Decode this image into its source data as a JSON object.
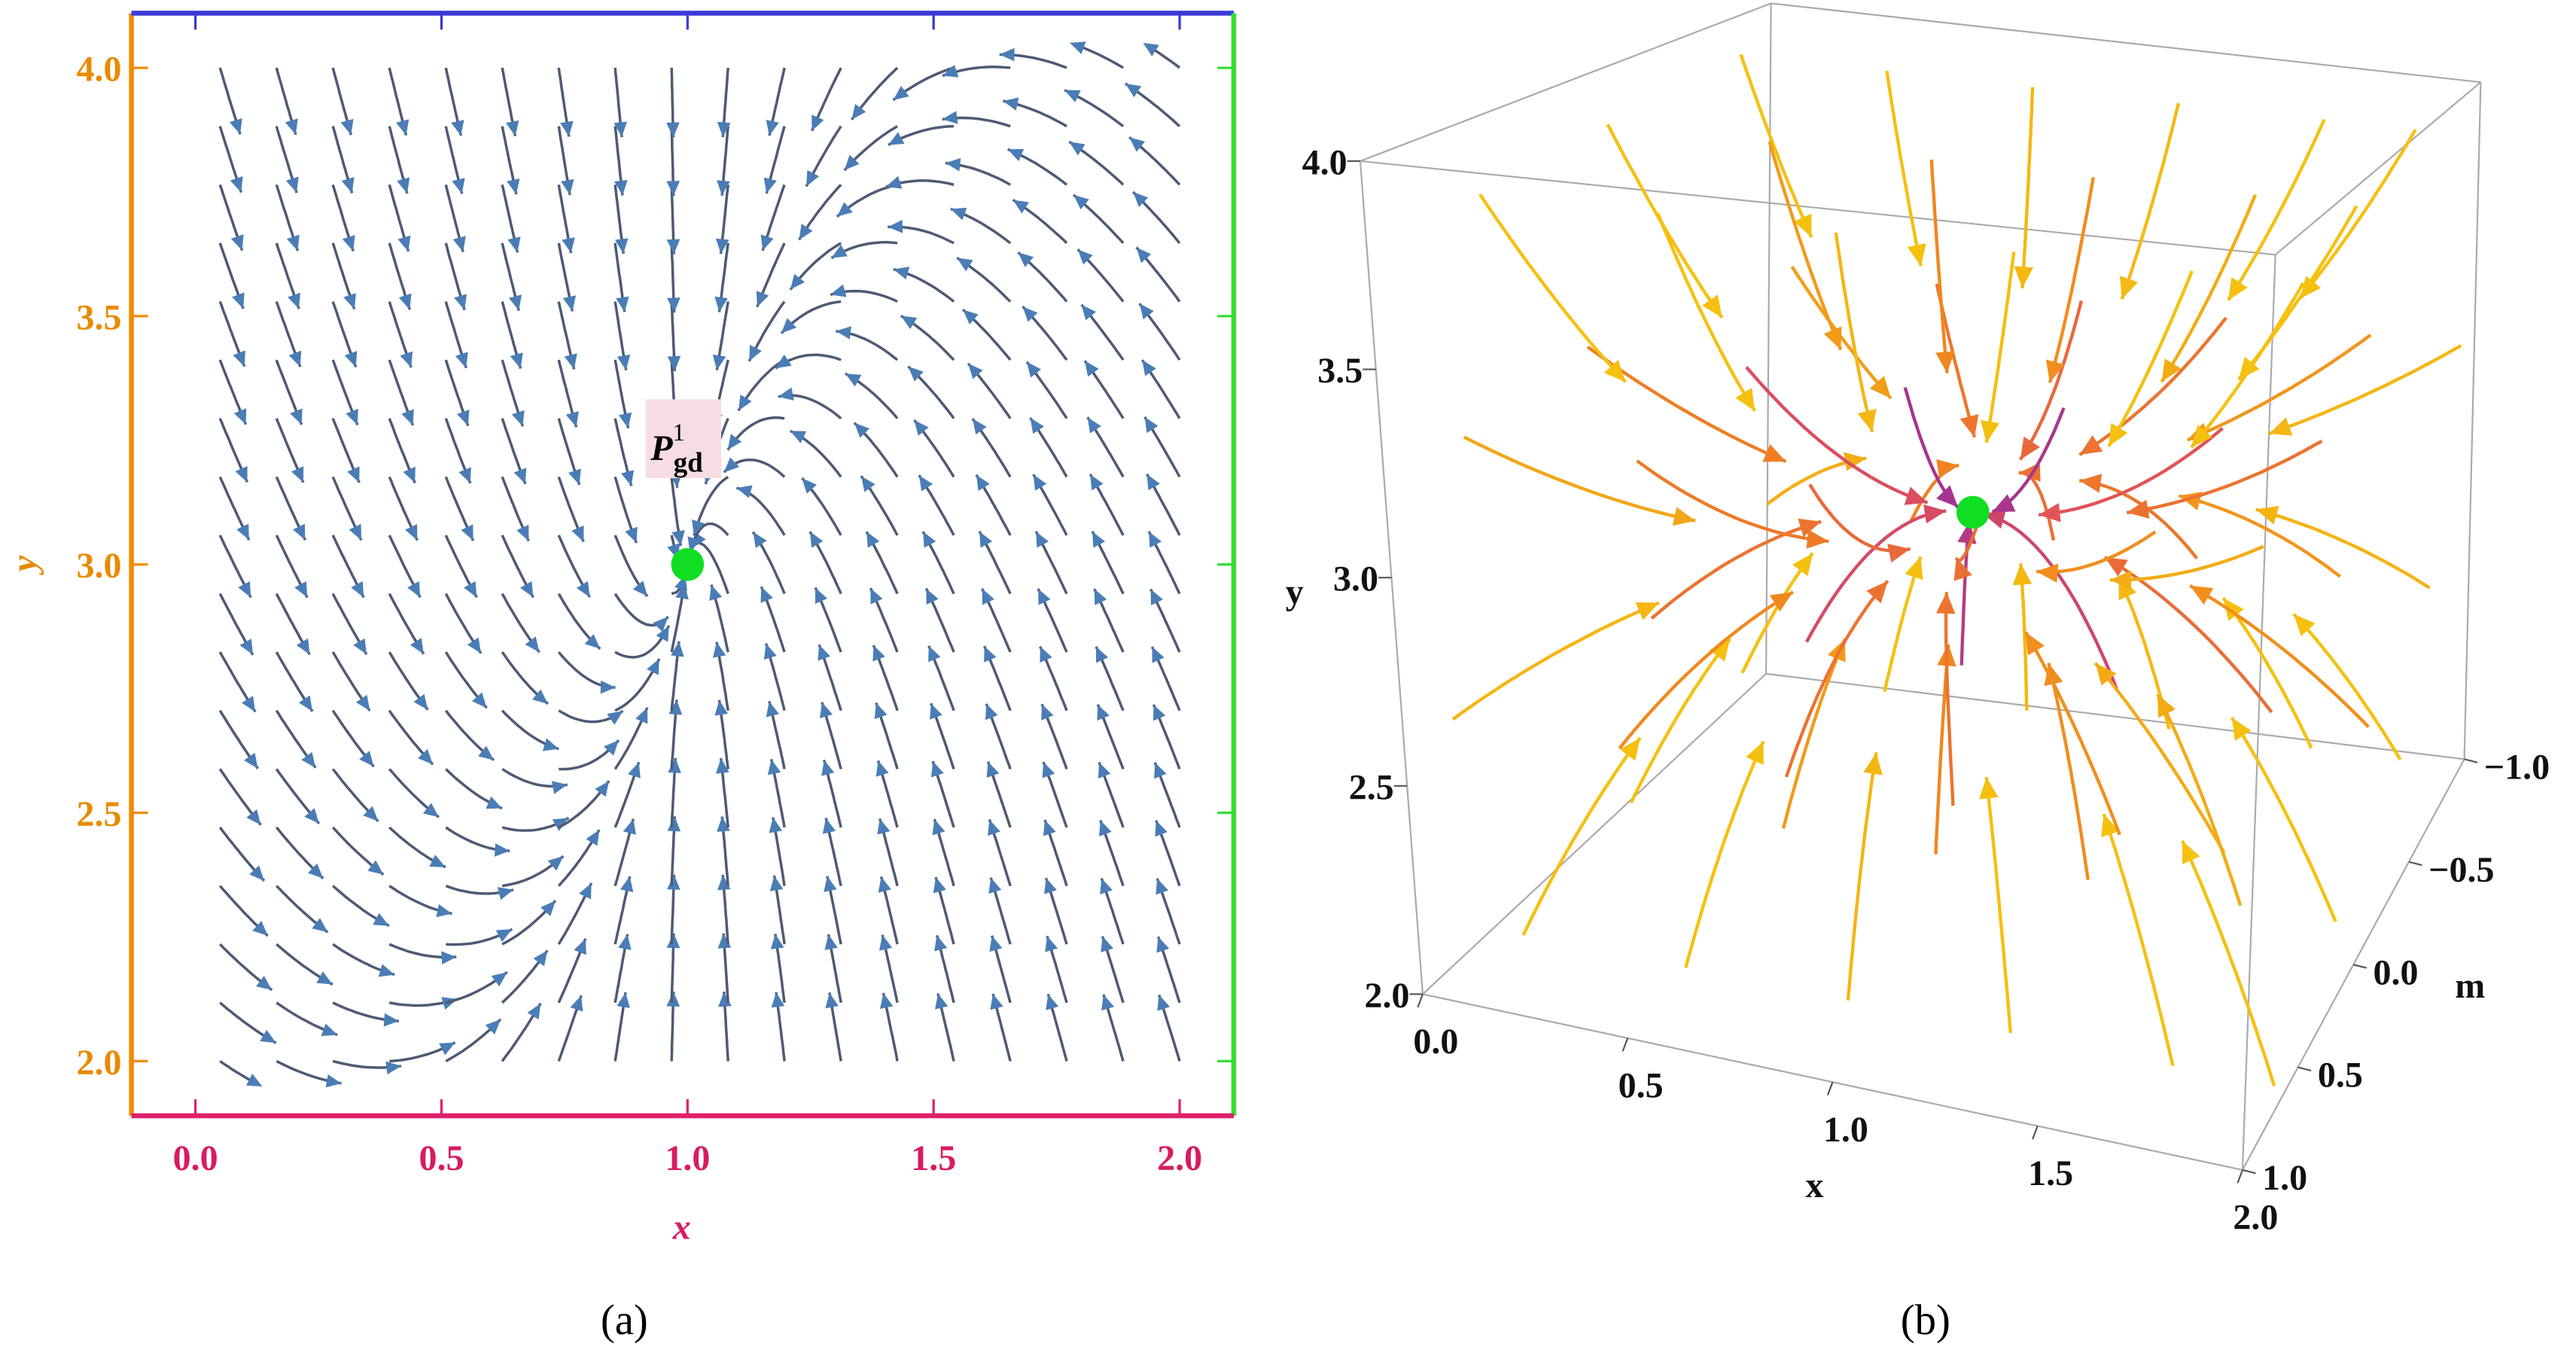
{
  "chart_data": [
    {
      "type": "stream",
      "xlabel": "x",
      "ylabel": "y",
      "xlim": [
        -0.13,
        2.11
      ],
      "ylim": [
        1.89,
        4.11
      ],
      "xticks": [
        {
          "value": 0,
          "label": "0.0"
        },
        {
          "value": 0.5,
          "label": "0.5"
        },
        {
          "value": 1,
          "label": "1.0"
        },
        {
          "value": 1.5,
          "label": "1.5"
        },
        {
          "value": 2,
          "label": "2.0"
        }
      ],
      "yticks": [
        {
          "value": 2,
          "label": "2.0"
        },
        {
          "value": 2.5,
          "label": "2.5"
        },
        {
          "value": 3,
          "label": "3.0"
        },
        {
          "value": 3.5,
          "label": "3.5"
        },
        {
          "value": 4,
          "label": "4.0"
        }
      ],
      "frame_colors": {
        "left": "#f08c00",
        "top": "#3a3ad8",
        "right": "#33dd33",
        "bottom": "#e0206a"
      },
      "xtick_color": "#d81b60",
      "ytick_color": "#e88a00",
      "stream_color": "#4e5a74",
      "arrow_color": "#4a7db5",
      "points": [
        {
          "x": 1.0,
          "y": 3.0,
          "color": "#11dd22",
          "label": "P",
          "label_sup": "1",
          "label_sub": "gd"
        }
      ],
      "caption": "(a)"
    },
    {
      "type": "stream3d",
      "xlabel": "x",
      "ylabel": "y",
      "zlabel": "m",
      "xlim": [
        0,
        2
      ],
      "ylim": [
        2,
        4
      ],
      "zlim": [
        -1,
        1
      ],
      "xticks": [
        {
          "value": 0,
          "label": "0.0"
        },
        {
          "value": 0.5,
          "label": "0.5"
        },
        {
          "value": 1,
          "label": "1.0"
        },
        {
          "value": 1.5,
          "label": "1.5"
        },
        {
          "value": 2,
          "label": "2.0"
        }
      ],
      "yticks": [
        {
          "value": 2,
          "label": "2.0"
        },
        {
          "value": 2.5,
          "label": "2.5"
        },
        {
          "value": 3,
          "label": "3.0"
        },
        {
          "value": 3.5,
          "label": "3.5"
        },
        {
          "value": 4,
          "label": "4.0"
        }
      ],
      "zticks": [
        {
          "value": -1,
          "label": "−1.0"
        },
        {
          "value": -0.5,
          "label": "−0.5"
        },
        {
          "value": 0,
          "label": "0.0"
        },
        {
          "value": 0.5,
          "label": "0.5"
        },
        {
          "value": 1,
          "label": "1.0"
        }
      ],
      "colormap": [
        "#4a1ed8",
        "#9a2f9a",
        "#e0505a",
        "#f08020",
        "#f5c010"
      ],
      "points": [
        {
          "x": 1.0,
          "y": 3.0,
          "z": 0.0,
          "color": "#11dd22"
        }
      ],
      "caption": "(b)"
    }
  ]
}
